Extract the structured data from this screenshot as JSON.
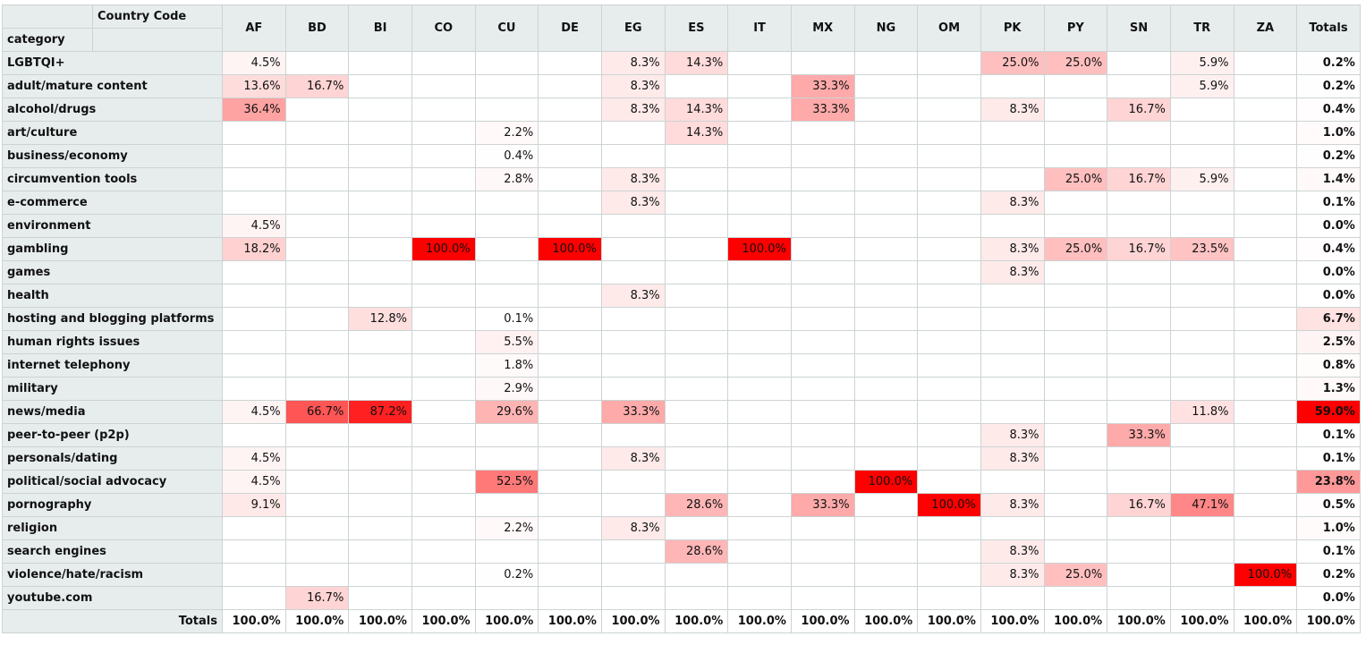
{
  "table": {
    "corner_column_label": "Country Code",
    "corner_row_label": "category",
    "columns": [
      "AF",
      "BD",
      "BI",
      "CO",
      "CU",
      "DE",
      "EG",
      "ES",
      "IT",
      "MX",
      "NG",
      "OM",
      "PK",
      "PY",
      "SN",
      "TR",
      "ZA",
      "Totals"
    ],
    "rows": [
      [
        "LGBTQI+",
        "4.5%",
        null,
        null,
        null,
        null,
        null,
        "8.3%",
        "14.3%",
        null,
        null,
        null,
        null,
        "25.0%",
        "25.0%",
        null,
        "5.9%",
        null,
        "0.2%"
      ],
      [
        "adult/mature content",
        "13.6%",
        "16.7%",
        null,
        null,
        null,
        null,
        "8.3%",
        null,
        null,
        "33.3%",
        null,
        null,
        null,
        null,
        null,
        "5.9%",
        null,
        "0.2%"
      ],
      [
        "alcohol/drugs",
        "36.4%",
        null,
        null,
        null,
        null,
        null,
        "8.3%",
        "14.3%",
        null,
        "33.3%",
        null,
        null,
        "8.3%",
        null,
        "16.7%",
        null,
        null,
        "0.4%"
      ],
      [
        "art/culture",
        null,
        null,
        null,
        null,
        "2.2%",
        null,
        null,
        "14.3%",
        null,
        null,
        null,
        null,
        null,
        null,
        null,
        null,
        null,
        "1.0%"
      ],
      [
        "business/economy",
        null,
        null,
        null,
        null,
        "0.4%",
        null,
        null,
        null,
        null,
        null,
        null,
        null,
        null,
        null,
        null,
        null,
        null,
        "0.2%"
      ],
      [
        "circumvention tools",
        null,
        null,
        null,
        null,
        "2.8%",
        null,
        "8.3%",
        null,
        null,
        null,
        null,
        null,
        null,
        "25.0%",
        "16.7%",
        "5.9%",
        null,
        "1.4%"
      ],
      [
        "e-commerce",
        null,
        null,
        null,
        null,
        null,
        null,
        "8.3%",
        null,
        null,
        null,
        null,
        null,
        "8.3%",
        null,
        null,
        null,
        null,
        "0.1%"
      ],
      [
        "environment",
        "4.5%",
        null,
        null,
        null,
        null,
        null,
        null,
        null,
        null,
        null,
        null,
        null,
        null,
        null,
        null,
        null,
        null,
        "0.0%"
      ],
      [
        "gambling",
        "18.2%",
        null,
        null,
        "100.0%",
        null,
        "100.0%",
        null,
        null,
        "100.0%",
        null,
        null,
        null,
        "8.3%",
        "25.0%",
        "16.7%",
        "23.5%",
        null,
        "0.4%"
      ],
      [
        "games",
        null,
        null,
        null,
        null,
        null,
        null,
        null,
        null,
        null,
        null,
        null,
        null,
        "8.3%",
        null,
        null,
        null,
        null,
        "0.0%"
      ],
      [
        "health",
        null,
        null,
        null,
        null,
        null,
        null,
        "8.3%",
        null,
        null,
        null,
        null,
        null,
        null,
        null,
        null,
        null,
        null,
        "0.0%"
      ],
      [
        "hosting and blogging platforms",
        null,
        null,
        "12.8%",
        null,
        "0.1%",
        null,
        null,
        null,
        null,
        null,
        null,
        null,
        null,
        null,
        null,
        null,
        null,
        "6.7%"
      ],
      [
        "human rights issues",
        null,
        null,
        null,
        null,
        "5.5%",
        null,
        null,
        null,
        null,
        null,
        null,
        null,
        null,
        null,
        null,
        null,
        null,
        "2.5%"
      ],
      [
        "internet telephony",
        null,
        null,
        null,
        null,
        "1.8%",
        null,
        null,
        null,
        null,
        null,
        null,
        null,
        null,
        null,
        null,
        null,
        null,
        "0.8%"
      ],
      [
        "military",
        null,
        null,
        null,
        null,
        "2.9%",
        null,
        null,
        null,
        null,
        null,
        null,
        null,
        null,
        null,
        null,
        null,
        null,
        "1.3%"
      ],
      [
        "news/media",
        "4.5%",
        "66.7%",
        "87.2%",
        null,
        "29.6%",
        null,
        "33.3%",
        null,
        null,
        null,
        null,
        null,
        null,
        null,
        null,
        "11.8%",
        null,
        "59.0%"
      ],
      [
        "peer-to-peer (p2p)",
        null,
        null,
        null,
        null,
        null,
        null,
        null,
        null,
        null,
        null,
        null,
        null,
        "8.3%",
        null,
        "33.3%",
        null,
        null,
        "0.1%"
      ],
      [
        "personals/dating",
        "4.5%",
        null,
        null,
        null,
        null,
        null,
        "8.3%",
        null,
        null,
        null,
        null,
        null,
        "8.3%",
        null,
        null,
        null,
        null,
        "0.1%"
      ],
      [
        "political/social advocacy",
        "4.5%",
        null,
        null,
        null,
        "52.5%",
        null,
        null,
        null,
        null,
        null,
        "100.0%",
        null,
        null,
        null,
        null,
        null,
        null,
        "23.8%"
      ],
      [
        "pornography",
        "9.1%",
        null,
        null,
        null,
        null,
        null,
        null,
        "28.6%",
        null,
        "33.3%",
        null,
        "100.0%",
        "8.3%",
        null,
        "16.7%",
        "47.1%",
        null,
        "0.5%"
      ],
      [
        "religion",
        null,
        null,
        null,
        null,
        "2.2%",
        null,
        "8.3%",
        null,
        null,
        null,
        null,
        null,
        null,
        null,
        null,
        null,
        null,
        "1.0%"
      ],
      [
        "search engines",
        null,
        null,
        null,
        null,
        null,
        null,
        null,
        "28.6%",
        null,
        null,
        null,
        null,
        "8.3%",
        null,
        null,
        null,
        null,
        "0.1%"
      ],
      [
        "violence/hate/racism",
        null,
        null,
        null,
        null,
        "0.2%",
        null,
        null,
        null,
        null,
        null,
        null,
        null,
        "8.3%",
        "25.0%",
        null,
        null,
        "100.0%",
        "0.2%"
      ],
      [
        "youtube.com",
        null,
        "16.7%",
        null,
        null,
        null,
        null,
        null,
        null,
        null,
        null,
        null,
        null,
        null,
        null,
        null,
        null,
        null,
        "0.0%"
      ]
    ],
    "totals_label": "Totals",
    "totals": [
      "100.0%",
      "100.0%",
      "100.0%",
      "100.0%",
      "100.0%",
      "100.0%",
      "100.0%",
      "100.0%",
      "100.0%",
      "100.0%",
      "100.0%",
      "100.0%",
      "100.0%",
      "100.0%",
      "100.0%",
      "100.0%",
      "100.0%",
      "100.0%"
    ]
  }
}
